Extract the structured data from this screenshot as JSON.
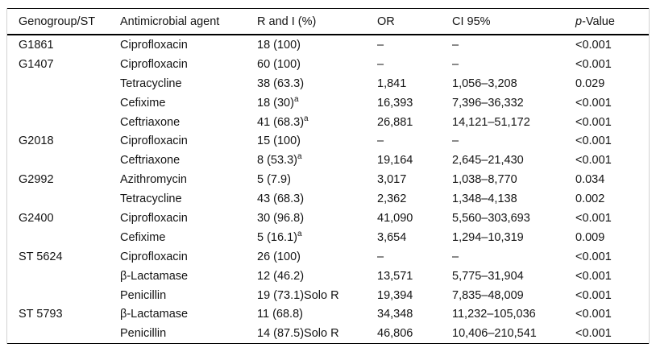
{
  "colors": {
    "rule": "#000000",
    "frame": "#d2d2d2",
    "text": "#141414",
    "background": "#ffffff"
  },
  "table": {
    "columns": [
      {
        "key": "genogroup",
        "label": "Genogroup/ST"
      },
      {
        "key": "agent",
        "label": "Antimicrobial agent"
      },
      {
        "key": "r-and-i",
        "label": "R and I (%)"
      },
      {
        "key": "or",
        "label": "OR"
      },
      {
        "key": "ci95",
        "label": "CI 95%"
      },
      {
        "key": "p-value",
        "label": "p-Value",
        "italic_prefix": "p",
        "rest": "-Value"
      }
    ],
    "rows": [
      {
        "genogroup": "G1861",
        "agent": "Ciprofloxacin",
        "r_i": "18 (100)",
        "r_i_sup": "",
        "r_i_suffix": "",
        "or": "–",
        "ci": "–",
        "p": "<0.001"
      },
      {
        "genogroup": "G1407",
        "agent": "Ciprofloxacin",
        "r_i": "60 (100)",
        "r_i_sup": "",
        "r_i_suffix": "",
        "or": "–",
        "ci": "–",
        "p": "<0.001"
      },
      {
        "genogroup": "",
        "agent": "Tetracycline",
        "r_i": "38 (63.3)",
        "r_i_sup": "",
        "r_i_suffix": "",
        "or": "1,841",
        "ci": "1,056–3,208",
        "p": "0.029"
      },
      {
        "genogroup": "",
        "agent": "Cefixime",
        "r_i": "18 (30)",
        "r_i_sup": "a",
        "r_i_suffix": "",
        "or": "16,393",
        "ci": "7,396–36,332",
        "p": "<0.001"
      },
      {
        "genogroup": "",
        "agent": "Ceftriaxone",
        "r_i": "41 (68.3)",
        "r_i_sup": "a",
        "r_i_suffix": "",
        "or": "26,881",
        "ci": "14,121–51,172",
        "p": "<0.001"
      },
      {
        "genogroup": "G2018",
        "agent": "Ciprofloxacin",
        "r_i": "15 (100)",
        "r_i_sup": "",
        "r_i_suffix": "",
        "or": "–",
        "ci": "–",
        "p": "<0.001"
      },
      {
        "genogroup": "",
        "agent": "Ceftriaxone",
        "r_i": "8 (53.3)",
        "r_i_sup": "a",
        "r_i_suffix": "",
        "or": "19,164",
        "ci": "2,645–21,430",
        "p": "<0.001"
      },
      {
        "genogroup": "G2992",
        "agent": "Azithromycin",
        "r_i": "5 (7.9)",
        "r_i_sup": "",
        "r_i_suffix": "",
        "or": "3,017",
        "ci": "1,038–8,770",
        "p": "0.034"
      },
      {
        "genogroup": "",
        "agent": "Tetracycline",
        "r_i": "43 (68.3)",
        "r_i_sup": "",
        "r_i_suffix": "",
        "or": "2,362",
        "ci": "1,348–4,138",
        "p": "0.002"
      },
      {
        "genogroup": "G2400",
        "agent": "Ciprofloxacin",
        "r_i": "30 (96.8)",
        "r_i_sup": "",
        "r_i_suffix": "",
        "or": "41,090",
        "ci": "5,560–303,693",
        "p": "<0.001"
      },
      {
        "genogroup": "",
        "agent": "Cefixime",
        "r_i": "5 (16.1)",
        "r_i_sup": "a",
        "r_i_suffix": "",
        "or": "3,654",
        "ci": "1,294–10,319",
        "p": "0.009"
      },
      {
        "genogroup": "ST 5624",
        "agent": "Ciprofloxacin",
        "r_i": "26 (100)",
        "r_i_sup": "",
        "r_i_suffix": "",
        "or": "–",
        "ci": "–",
        "p": "<0.001"
      },
      {
        "genogroup": "",
        "agent": "β-Lactamase",
        "r_i": "12 (46.2)",
        "r_i_sup": "",
        "r_i_suffix": "",
        "or": "13,571",
        "ci": "5,775–31,904",
        "p": "<0.001"
      },
      {
        "genogroup": "",
        "agent": "Penicillin",
        "r_i": "19 (73.1)",
        "r_i_sup": "",
        "r_i_suffix": "Solo R",
        "or": "19,394",
        "ci": "7,835–48,009",
        "p": "<0.001"
      },
      {
        "genogroup": "ST 5793",
        "agent": "β-Lactamase",
        "r_i": "11 (68.8)",
        "r_i_sup": "",
        "r_i_suffix": "",
        "or": "34,348",
        "ci": "11,232–105,036",
        "p": "<0.001"
      },
      {
        "genogroup": "",
        "agent": "Penicillin",
        "r_i": "14 (87.5)",
        "r_i_sup": "",
        "r_i_suffix": "Solo R",
        "or": "46,806",
        "ci": "10,406–210,541",
        "p": "<0.001"
      }
    ]
  }
}
